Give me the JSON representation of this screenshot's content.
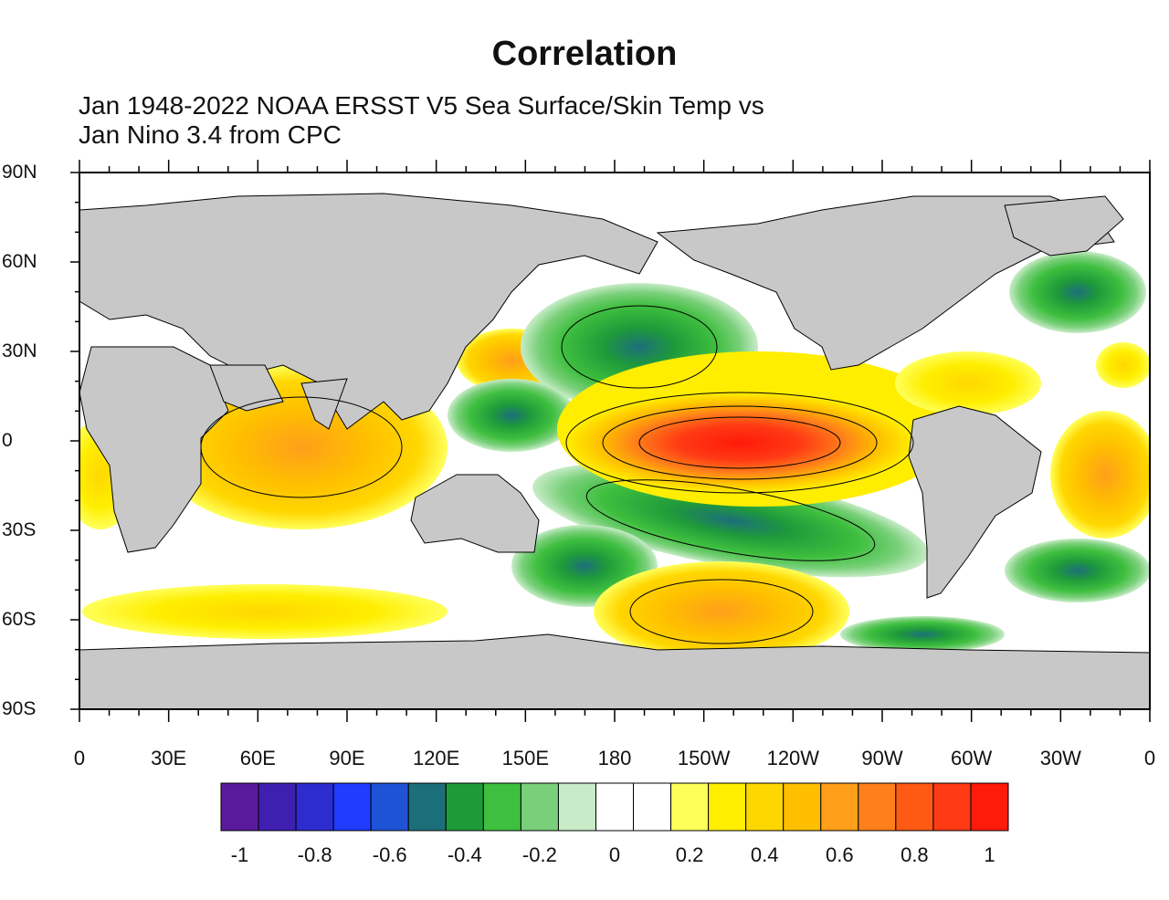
{
  "title": "Correlation",
  "subtitle_line1": "Jan 1948-2022 NOAA ERSST V5 Sea Surface/Skin Temp vs",
  "subtitle_line2": "Jan Nino 3.4 from CPC",
  "lat_labels": [
    "90N",
    "60N",
    "30N",
    "0",
    "30S",
    "60S",
    "90S"
  ],
  "lon_labels": [
    "0",
    "30E",
    "60E",
    "90E",
    "120E",
    "150E",
    "180",
    "150W",
    "120W",
    "90W",
    "60W",
    "30W",
    "0"
  ],
  "colorbar": {
    "colors": [
      "#5a1a9c",
      "#3f1fb0",
      "#2c2ccf",
      "#1f3cff",
      "#1f53d6",
      "#1c6f7a",
      "#1f9a3a",
      "#3fbf3f",
      "#7ad07a",
      "#c7ecc7",
      "#ffffff",
      "#ffffff",
      "#ffff5a",
      "#ffee00",
      "#ffd700",
      "#ffbf00",
      "#ff9f1a",
      "#ff7f1a",
      "#ff5a14",
      "#ff3a14",
      "#ff1a0a"
    ],
    "labels": [
      "-1",
      "-0.8",
      "-0.6",
      "-0.4",
      "-0.2",
      "0",
      "0.2",
      "0.4",
      "0.6",
      "0.8",
      "1"
    ],
    "range": [
      -1,
      1
    ]
  },
  "colors": {
    "land": "#c8c8c8",
    "frame": "#000000"
  }
}
